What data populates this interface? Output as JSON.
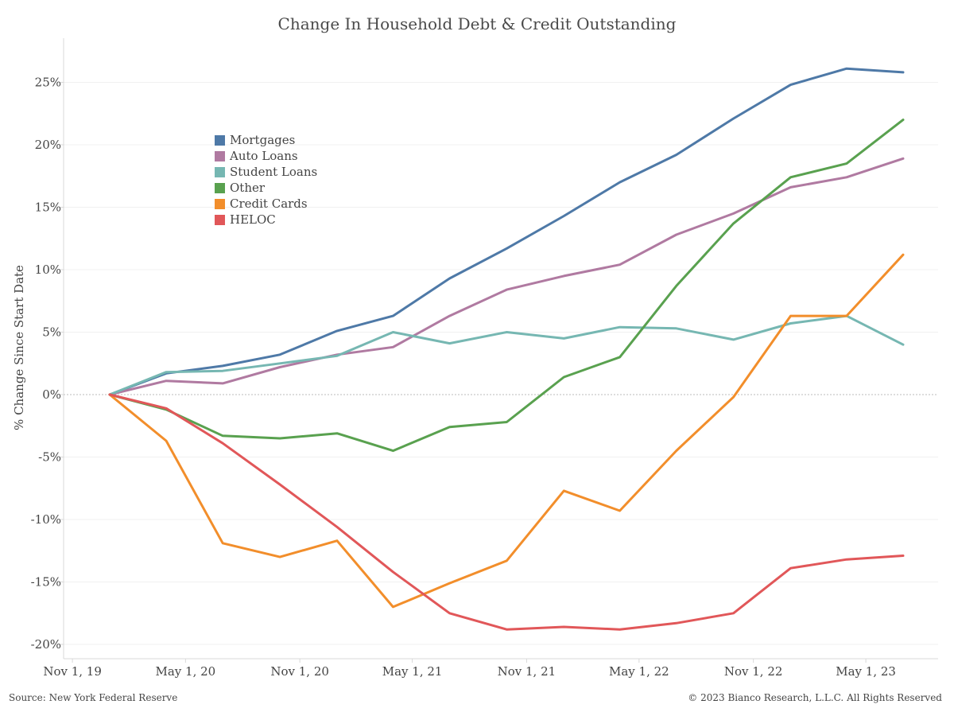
{
  "chart_data": {
    "type": "line",
    "title": "Change In Household Debt & Credit Outstanding",
    "ylabel": "% Change Since Start Date",
    "xlabel": "",
    "ylim": [
      -22,
      28
    ],
    "y_ticks": [
      {
        "value": 25,
        "label": "25%"
      },
      {
        "value": 20,
        "label": "20%"
      },
      {
        "value": 15,
        "label": "15%"
      },
      {
        "value": 10,
        "label": "10%"
      },
      {
        "value": 5,
        "label": "5%"
      },
      {
        "value": 0,
        "label": "0%"
      },
      {
        "value": -5,
        "label": "-5%"
      },
      {
        "value": -10,
        "label": "-10%"
      },
      {
        "value": -15,
        "label": "-15%"
      },
      {
        "value": -20,
        "label": "-20%"
      }
    ],
    "x": [
      "2019-12-31",
      "2020-03-31",
      "2020-06-30",
      "2020-09-30",
      "2020-12-31",
      "2021-03-31",
      "2021-06-30",
      "2021-09-30",
      "2021-12-31",
      "2022-03-31",
      "2022-06-30",
      "2022-09-30",
      "2022-12-31",
      "2023-03-31",
      "2023-06-30"
    ],
    "x_ticks": [
      {
        "date": "2019-11-01",
        "label": "Nov 1, 19"
      },
      {
        "date": "2020-05-01",
        "label": "May 1, 20"
      },
      {
        "date": "2020-11-01",
        "label": "Nov 1, 20"
      },
      {
        "date": "2021-05-01",
        "label": "May 1, 21"
      },
      {
        "date": "2021-11-01",
        "label": "Nov 1, 21"
      },
      {
        "date": "2022-05-01",
        "label": "May 1, 22"
      },
      {
        "date": "2022-11-01",
        "label": "Nov 1, 22"
      },
      {
        "date": "2023-05-01",
        "label": "May 1, 23"
      }
    ],
    "series": [
      {
        "name": "Mortgages",
        "color": "#4e79a7",
        "values": [
          0,
          1.7,
          2.3,
          3.2,
          5.1,
          6.3,
          9.3,
          11.7,
          14.3,
          17.0,
          19.2,
          22.1,
          24.8,
          26.1,
          25.8
        ]
      },
      {
        "name": "Auto Loans",
        "color": "#b07aa1",
        "values": [
          0,
          1.1,
          0.9,
          2.2,
          3.2,
          3.8,
          6.3,
          8.4,
          9.5,
          10.4,
          12.8,
          14.5,
          16.6,
          17.4,
          18.9
        ]
      },
      {
        "name": "Student Loans",
        "color": "#76b7b2",
        "values": [
          0,
          1.8,
          1.9,
          2.5,
          3.1,
          5.0,
          4.1,
          5.0,
          4.5,
          5.4,
          5.3,
          4.4,
          5.7,
          6.3,
          4.0
        ]
      },
      {
        "name": "Other",
        "color": "#59a14f",
        "values": [
          0,
          -1.2,
          -3.3,
          -3.5,
          -3.1,
          -4.5,
          -2.6,
          -2.2,
          1.4,
          3.0,
          8.7,
          13.7,
          17.4,
          18.5,
          22.0
        ]
      },
      {
        "name": "Credit Cards",
        "color": "#f28e2b",
        "values": [
          0,
          -3.7,
          -11.9,
          -13.0,
          -11.7,
          -17.0,
          -15.1,
          -13.3,
          -7.7,
          -9.3,
          -4.5,
          -0.2,
          6.3,
          6.3,
          11.2
        ]
      },
      {
        "name": "HELOC",
        "color": "#e15759",
        "values": [
          0,
          -1.1,
          -3.9,
          -7.2,
          -10.6,
          -14.2,
          -17.5,
          -18.8,
          -18.6,
          -18.8,
          -18.3,
          -17.5,
          -13.9,
          -13.2,
          -12.9
        ]
      }
    ],
    "grid": true,
    "legend": "top-left"
  },
  "footer": {
    "source": "Source: New York Federal Reserve",
    "copyright": "© 2023 Bianco Research, L.L.C. All Rights Reserved"
  }
}
